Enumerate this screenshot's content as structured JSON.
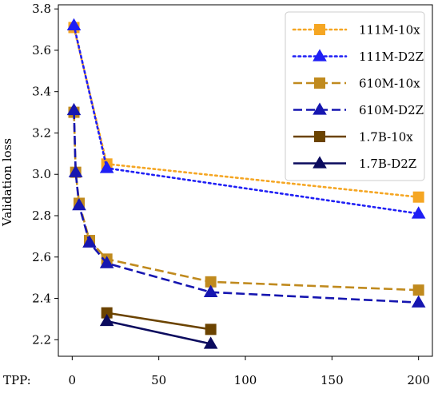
{
  "chart_data": {
    "type": "line",
    "title": "",
    "xlabel_prefix": "TPP:",
    "ylabel": "Validation loss",
    "xlim": [
      -8,
      208
    ],
    "ylim": [
      2.12,
      3.82
    ],
    "x_ticks": [
      0,
      50,
      100,
      150,
      200
    ],
    "y_ticks": [
      2.2,
      2.4,
      2.6,
      2.8,
      3.0,
      3.2,
      3.4,
      3.6,
      3.8
    ],
    "y_tick_labels": [
      "2.2",
      "2.4",
      "2.6",
      "2.8",
      "3.0",
      "3.2",
      "3.4",
      "3.6",
      "3.8"
    ],
    "grid": false,
    "legend_position": "top-right",
    "series": [
      {
        "name": "111M-10x",
        "color": "#f5a623",
        "linestyle": "dotted",
        "marker": "square",
        "x": [
          1,
          20,
          200
        ],
        "y": [
          3.71,
          3.05,
          2.89
        ]
      },
      {
        "name": "111M-D2Z",
        "color": "#1f1ff5",
        "linestyle": "dotted",
        "marker": "triangle",
        "x": [
          1,
          20,
          200
        ],
        "y": [
          3.72,
          3.03,
          2.81
        ]
      },
      {
        "name": "610M-10x",
        "color": "#c08a1e",
        "linestyle": "dashed",
        "marker": "square",
        "x": [
          1,
          2,
          4,
          10,
          20,
          80,
          200
        ],
        "y": [
          3.3,
          3.01,
          2.86,
          2.68,
          2.59,
          2.48,
          2.44
        ]
      },
      {
        "name": "610M-D2Z",
        "color": "#1616b0",
        "linestyle": "dashed",
        "marker": "triangle",
        "x": [
          1,
          2,
          4,
          10,
          20,
          80,
          200
        ],
        "y": [
          3.31,
          3.01,
          2.85,
          2.67,
          2.57,
          2.43,
          2.38
        ]
      },
      {
        "name": "1.7B-10x",
        "color": "#6b4300",
        "linestyle": "solid",
        "marker": "square",
        "x": [
          20,
          80
        ],
        "y": [
          2.33,
          2.25
        ]
      },
      {
        "name": "1.7B-D2Z",
        "color": "#0b0b5e",
        "linestyle": "solid",
        "marker": "triangle",
        "x": [
          20,
          80
        ],
        "y": [
          2.29,
          2.18
        ]
      }
    ]
  }
}
